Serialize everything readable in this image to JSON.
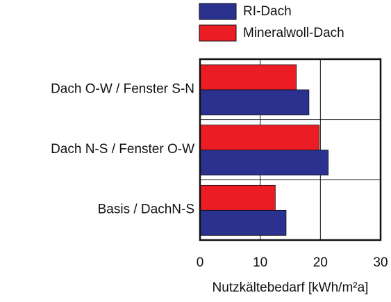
{
  "chart_data": {
    "type": "hbar",
    "categories": [
      "Dach O-W / Fenster S-N",
      "Dach N-S / Fenster O-W",
      "Basis / DachN-S"
    ],
    "series": [
      {
        "name": "RI-Dach",
        "color": "#2a318f",
        "values": [
          18.1,
          21.3,
          14.3
        ]
      },
      {
        "name": "Mineralwoll-Dach",
        "color": "#ec1c24",
        "values": [
          16.0,
          19.8,
          12.5
        ]
      }
    ],
    "xlabel": "Nutzkältebedarf [kWh/m²a]",
    "xlim": [
      0,
      30
    ],
    "xticks": [
      0,
      10,
      20,
      30
    ],
    "grid": true
  }
}
